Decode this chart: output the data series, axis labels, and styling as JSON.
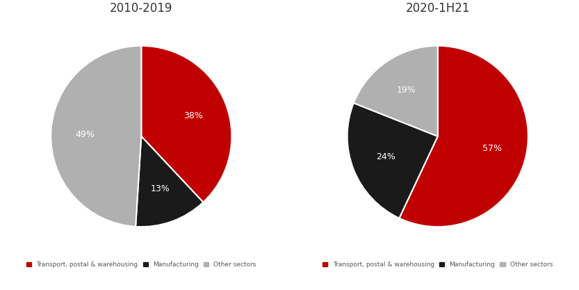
{
  "charts": [
    {
      "title": "2010-2019",
      "values": [
        38,
        13,
        49
      ],
      "labels": [
        "38%",
        "13%",
        "49%"
      ],
      "colors": [
        "#c00000",
        "#1a1a1a",
        "#b0b0b0"
      ],
      "startangle": 90
    },
    {
      "title": "2020-1H21",
      "values": [
        57,
        24,
        19
      ],
      "labels": [
        "57%",
        "24%",
        "19%"
      ],
      "colors": [
        "#c00000",
        "#1a1a1a",
        "#b0b0b0"
      ],
      "startangle": 90
    }
  ],
  "legend_labels": [
    "Transport, postal & warehousing",
    "Manufacturing",
    "Other sectors"
  ],
  "legend_colors": [
    "#c00000",
    "#1a1a1a",
    "#b0b0b0"
  ],
  "title_fontsize": 12,
  "label_fontsize": 9,
  "background_color": "#ffffff"
}
